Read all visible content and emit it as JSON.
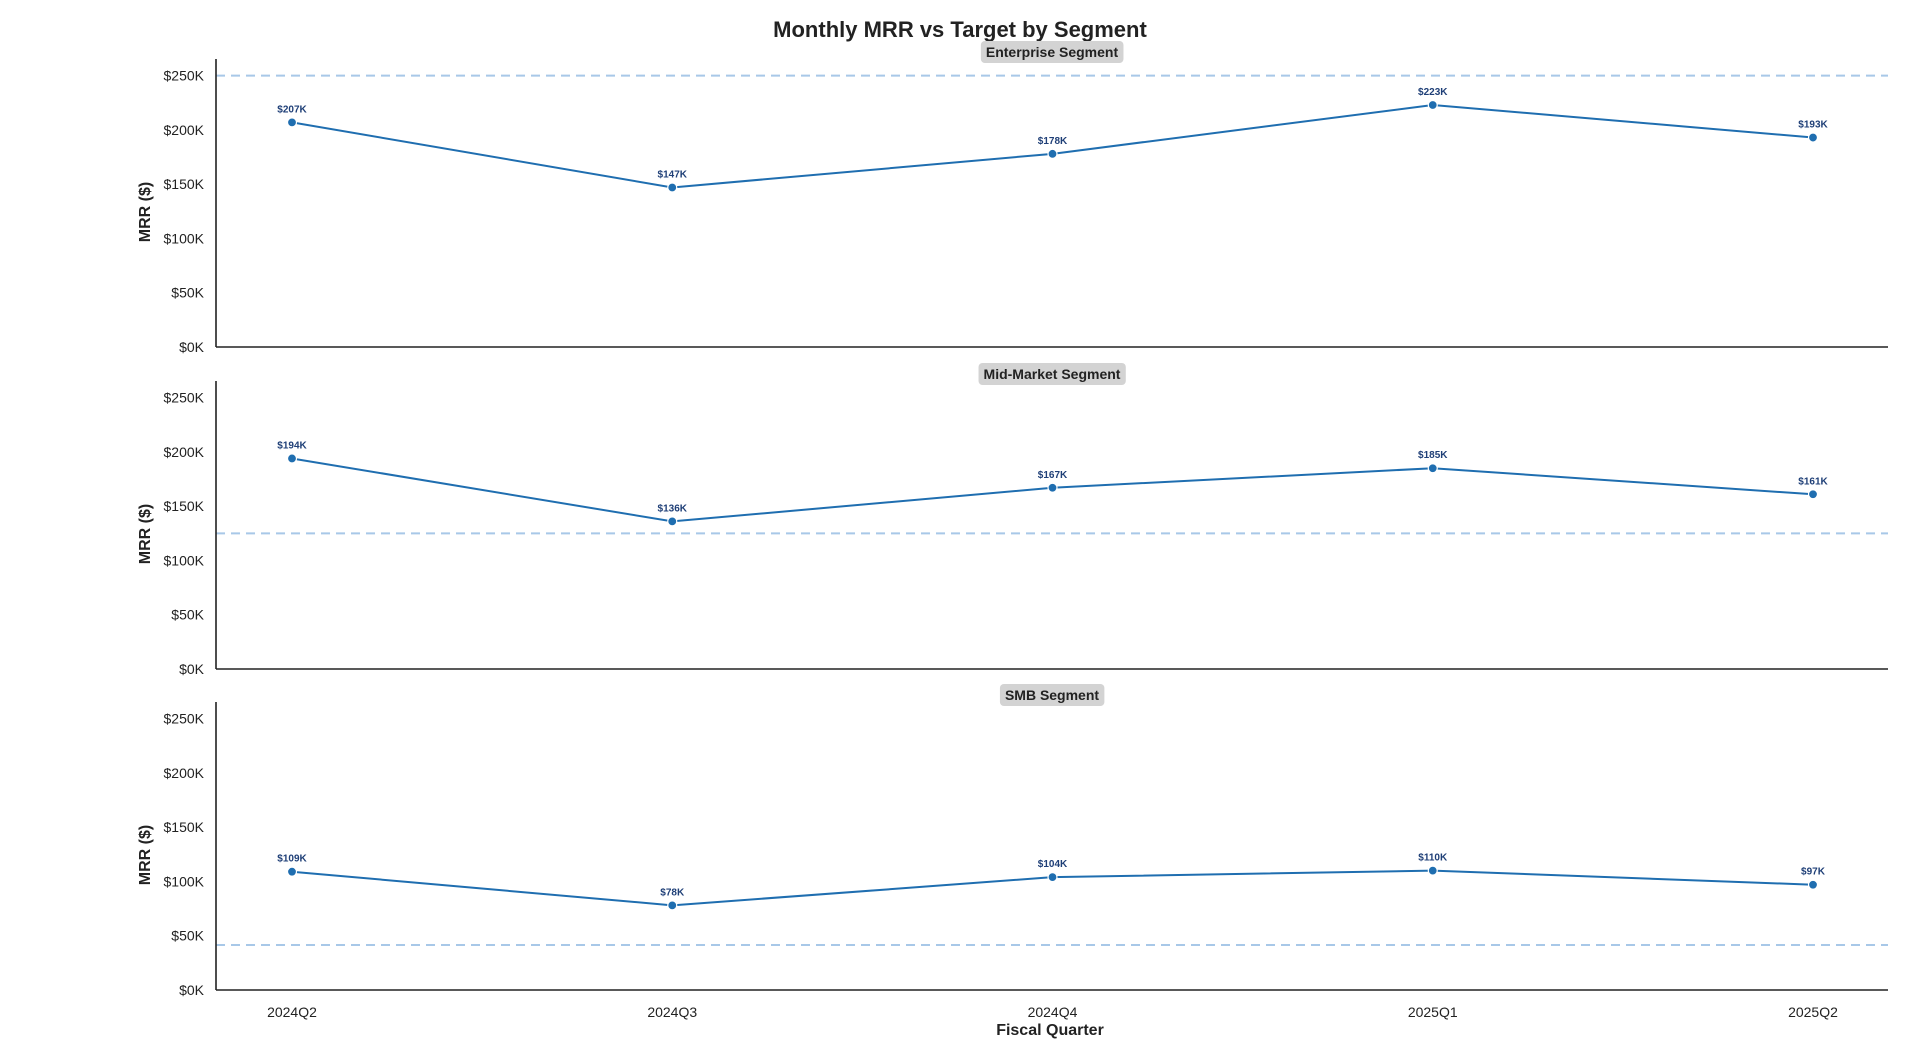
{
  "chart_data": {
    "type": "line",
    "title": "Monthly MRR vs Target by Segment",
    "xlabel": "Fiscal Quarter",
    "ylabel": "MRR ($)",
    "categories": [
      "2024Q2",
      "2024Q3",
      "2024Q4",
      "2025Q1",
      "2025Q2"
    ],
    "ylim": [
      0,
      258000
    ],
    "yticks": [
      0,
      50000,
      100000,
      150000,
      200000,
      250000
    ],
    "ytick_labels": [
      "$0K",
      "$50K",
      "$100K",
      "$150K",
      "$200K",
      "$250K"
    ],
    "grid": false,
    "line_color": "#1f6eb0",
    "target_color": "#a8c8e8",
    "label_color": "#1f3f77",
    "panel_title_bg": "#d3d3d3",
    "panels": [
      {
        "title": "Enterprise Segment",
        "values": [
          207000,
          147000,
          178000,
          223000,
          193000
        ],
        "labels": [
          "$207K",
          "$147K",
          "$178K",
          "$223K",
          "$193K"
        ],
        "target": 250000
      },
      {
        "title": "Mid-Market Segment",
        "values": [
          194000,
          136000,
          167000,
          185000,
          161000
        ],
        "labels": [
          "$194K",
          "$136K",
          "$167K",
          "$185K",
          "$161K"
        ],
        "target": 125000
      },
      {
        "title": "SMB Segment",
        "values": [
          109000,
          78000,
          104000,
          110000,
          97000
        ],
        "labels": [
          "$109K",
          "$78K",
          "$104K",
          "$110K",
          "$97K"
        ],
        "target": 41500
      }
    ]
  }
}
